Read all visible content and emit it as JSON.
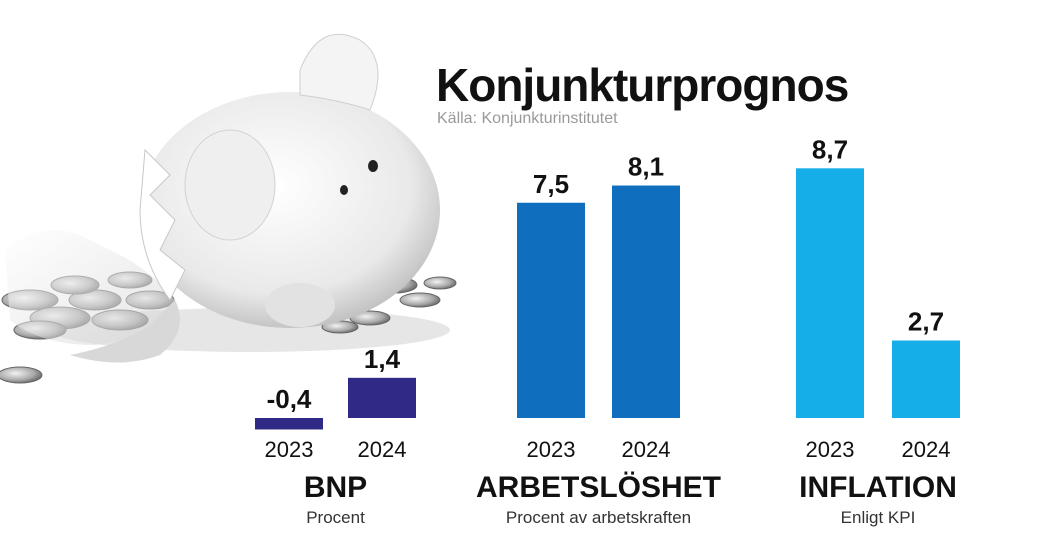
{
  "title": "Konjunkturprognos",
  "source": "Källa: Konjunkturinstitutet",
  "chart_data": [
    {
      "type": "bar",
      "name": "BNP",
      "subtitle": "Procent",
      "categories": [
        "2023",
        "2024"
      ],
      "values": [
        -0.4,
        1.4
      ],
      "value_labels": [
        "-0,4",
        "1,4"
      ],
      "color": "#2e2a86"
    },
    {
      "type": "bar",
      "name": "ARBETSLÖSHET",
      "subtitle": "Procent av arbetskraften",
      "categories": [
        "2023",
        "2024"
      ],
      "values": [
        7.5,
        8.1
      ],
      "value_labels": [
        "7,5",
        "8,1"
      ],
      "color": "#0f6fbe"
    },
    {
      "type": "bar",
      "name": "INFLATION",
      "subtitle": "Enligt KPI",
      "categories": [
        "2023",
        "2024"
      ],
      "values": [
        8.7,
        2.7
      ],
      "value_labels": [
        "8,7",
        "2,7"
      ],
      "color": "#16aee8"
    }
  ]
}
